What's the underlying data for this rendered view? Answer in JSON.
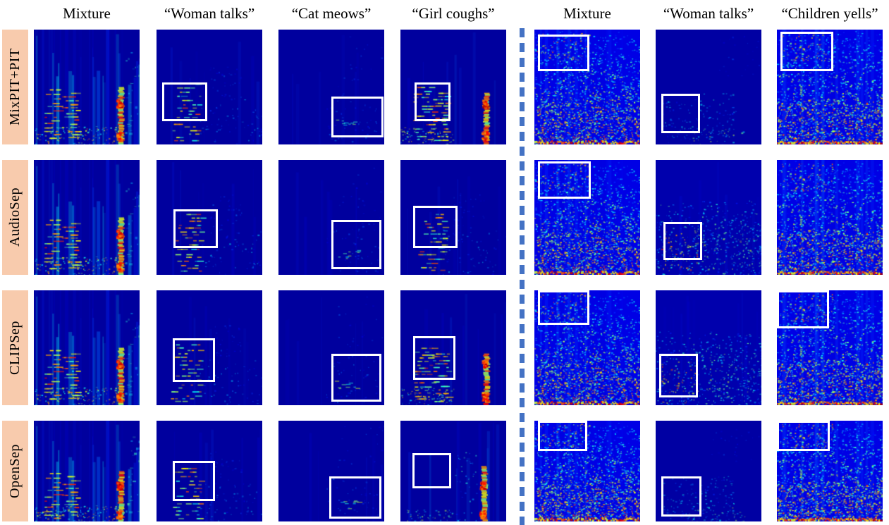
{
  "header": {
    "left_columns": [
      "Mixture",
      "“Woman talks”",
      "“Cat meows”",
      "“Girl coughs”"
    ],
    "right_columns": [
      "Mixture",
      "“Woman talks”",
      "“Children yells”"
    ]
  },
  "rows": [
    {
      "label": "MixPIT+PIT",
      "cells": [
        {
          "group": "left",
          "column": "Mixture",
          "profile": "mixL",
          "highlight": null
        },
        {
          "group": "left",
          "column": "“Woman talks”",
          "profile": "sepF",
          "highlight": {
            "x": 0.05,
            "y": 0.46,
            "w": 0.43,
            "h": 0.34
          }
        },
        {
          "group": "left",
          "column": "“Cat meows”",
          "profile": "sepC",
          "highlight": {
            "x": 0.5,
            "y": 0.58,
            "w": 0.49,
            "h": 0.36
          }
        },
        {
          "group": "left",
          "column": "“Girl coughs”",
          "profile": "sepG",
          "highlight": {
            "x": 0.13,
            "y": 0.46,
            "w": 0.34,
            "h": 0.34
          }
        },
        {
          "group": "right",
          "column": "Mixture",
          "profile": "mixR",
          "highlight": {
            "x": 0.03,
            "y": 0.04,
            "w": 0.49,
            "h": 0.32
          }
        },
        {
          "group": "right",
          "column": "“Woman talks”",
          "profile": "sepWRd",
          "highlight": {
            "x": 0.05,
            "y": 0.56,
            "w": 0.37,
            "h": 0.34
          }
        },
        {
          "group": "right",
          "column": "“Children yells”",
          "profile": "mixR",
          "highlight": {
            "x": 0.03,
            "y": 0.02,
            "w": 0.5,
            "h": 0.34
          }
        }
      ]
    },
    {
      "label": "AudioSep",
      "cells": [
        {
          "group": "left",
          "column": "Mixture",
          "profile": "mixL",
          "highlight": null
        },
        {
          "group": "left",
          "column": "“Woman talks”",
          "profile": "sepF",
          "highlight": {
            "x": 0.16,
            "y": 0.43,
            "w": 0.42,
            "h": 0.34
          }
        },
        {
          "group": "left",
          "column": "“Cat meows”",
          "profile": "sepC",
          "highlight": {
            "x": 0.5,
            "y": 0.52,
            "w": 0.47,
            "h": 0.43
          }
        },
        {
          "group": "left",
          "column": "“Girl coughs”",
          "profile": "sepF",
          "highlight": {
            "x": 0.12,
            "y": 0.4,
            "w": 0.42,
            "h": 0.37
          }
        },
        {
          "group": "right",
          "column": "Mixture",
          "profile": "mixR",
          "highlight": {
            "x": 0.03,
            "y": 0.01,
            "w": 0.5,
            "h": 0.33
          }
        },
        {
          "group": "right",
          "column": "“Woman talks”",
          "profile": "sepWR",
          "highlight": {
            "x": 0.07,
            "y": 0.54,
            "w": 0.37,
            "h": 0.33
          }
        },
        {
          "group": "right",
          "column": "“Children yells”",
          "profile": "mixR",
          "highlight": null
        }
      ]
    },
    {
      "label": "CLIPSep",
      "cells": [
        {
          "group": "left",
          "column": "Mixture",
          "profile": "mixL",
          "highlight": null
        },
        {
          "group": "left",
          "column": "“Woman talks”",
          "profile": "sepF",
          "highlight": {
            "x": 0.15,
            "y": 0.42,
            "w": 0.4,
            "h": 0.38
          }
        },
        {
          "group": "left",
          "column": "“Cat meows”",
          "profile": "sepC",
          "highlight": {
            "x": 0.5,
            "y": 0.55,
            "w": 0.47,
            "h": 0.42
          }
        },
        {
          "group": "left",
          "column": "“Girl coughs”",
          "profile": "sepG",
          "highlight": {
            "x": 0.12,
            "y": 0.4,
            "w": 0.4,
            "h": 0.38
          }
        },
        {
          "group": "right",
          "column": "Mixture",
          "profile": "mixR",
          "highlight": {
            "x": 0.03,
            "y": 0.0,
            "w": 0.49,
            "h": 0.3
          }
        },
        {
          "group": "right",
          "column": "“Woman talks”",
          "profile": "sepWR",
          "highlight": {
            "x": 0.03,
            "y": 0.55,
            "w": 0.37,
            "h": 0.38
          }
        },
        {
          "group": "right",
          "column": "“Children yells”",
          "profile": "mixR",
          "highlight": {
            "x": 0.0,
            "y": 0.0,
            "w": 0.49,
            "h": 0.33
          }
        }
      ]
    },
    {
      "label": "OpenSep",
      "cells": [
        {
          "group": "left",
          "column": "Mixture",
          "profile": "mixL",
          "highlight": null
        },
        {
          "group": "left",
          "column": "“Woman talks”",
          "profile": "sepF",
          "highlight": {
            "x": 0.15,
            "y": 0.4,
            "w": 0.4,
            "h": 0.4
          }
        },
        {
          "group": "left",
          "column": "“Cat meows”",
          "profile": "sepC",
          "highlight": {
            "x": 0.48,
            "y": 0.55,
            "w": 0.49,
            "h": 0.42
          }
        },
        {
          "group": "left",
          "column": "“Girl coughs”",
          "profile": "sepGd",
          "highlight": {
            "x": 0.11,
            "y": 0.32,
            "w": 0.37,
            "h": 0.35
          }
        },
        {
          "group": "right",
          "column": "Mixture",
          "profile": "mixR",
          "highlight": {
            "x": 0.03,
            "y": 0.0,
            "w": 0.47,
            "h": 0.3
          }
        },
        {
          "group": "right",
          "column": "“Woman talks”",
          "profile": "sepWRd",
          "highlight": {
            "x": 0.05,
            "y": 0.55,
            "w": 0.38,
            "h": 0.4
          }
        },
        {
          "group": "right",
          "column": "“Children yells”",
          "profile": "mixR",
          "highlight": {
            "x": 0.0,
            "y": 0.0,
            "w": 0.5,
            "h": 0.3
          }
        }
      ]
    }
  ],
  "colors": {
    "label_bg": "#F8CBAD",
    "divider": "#4472C4",
    "highlight": "#FFFFFF",
    "spectrogram_base": "#00009E"
  }
}
